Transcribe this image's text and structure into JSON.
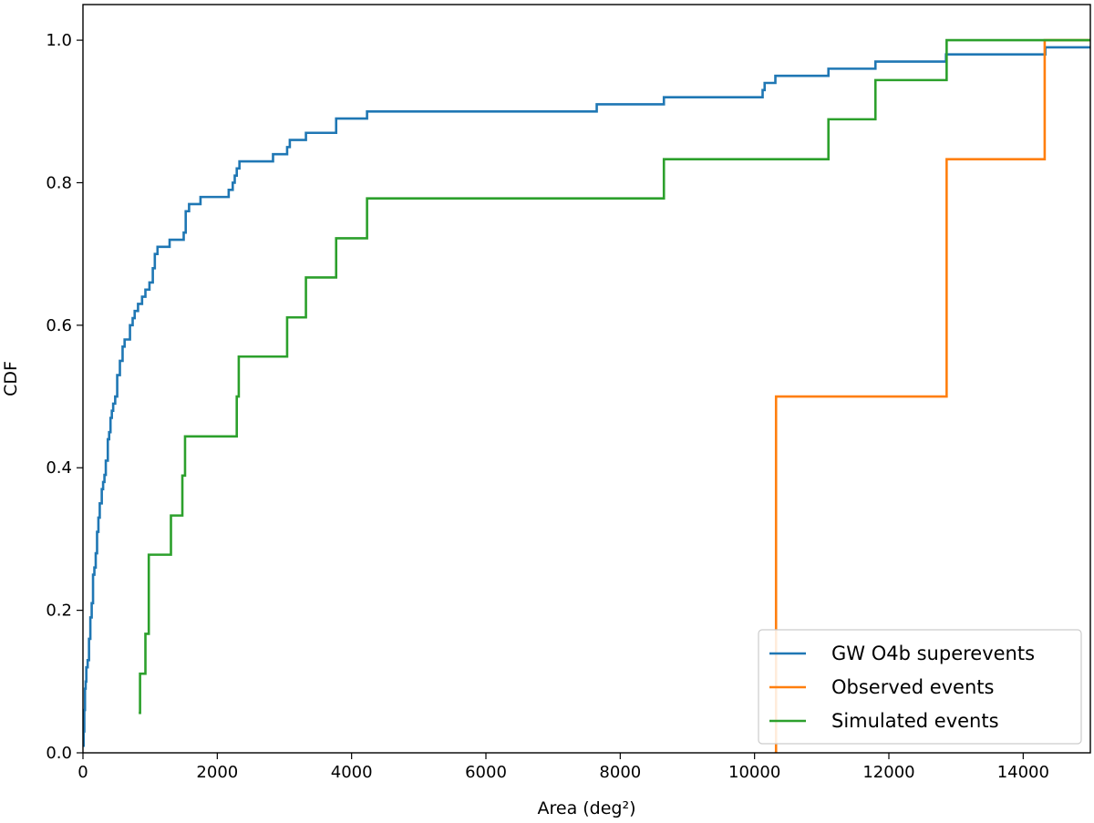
{
  "chart_data": {
    "type": "line",
    "step": true,
    "title": "",
    "xlabel": "Area (deg²)",
    "ylabel": "CDF",
    "xlim": [
      0,
      15000
    ],
    "ylim": [
      0,
      1.05
    ],
    "xticks": [
      0,
      2000,
      4000,
      6000,
      8000,
      10000,
      12000,
      14000
    ],
    "yticks": [
      0.0,
      0.2,
      0.4,
      0.6,
      0.8,
      1.0
    ],
    "xtick_labels": [
      "0",
      "2000",
      "4000",
      "6000",
      "8000",
      "10000",
      "12000",
      "14000"
    ],
    "ytick_labels": [
      "0.0",
      "0.2",
      "0.4",
      "0.6",
      "0.8",
      "1.0"
    ],
    "grid": false,
    "legend_position": "lower-right",
    "series": [
      {
        "name": "GW O4b superevents",
        "color": "#1f77b4",
        "points": [
          [
            0,
            0.01
          ],
          [
            10,
            0.03
          ],
          [
            20,
            0.06
          ],
          [
            30,
            0.09
          ],
          [
            40,
            0.1
          ],
          [
            50,
            0.12
          ],
          [
            70,
            0.13
          ],
          [
            90,
            0.16
          ],
          [
            110,
            0.19
          ],
          [
            130,
            0.21
          ],
          [
            150,
            0.25
          ],
          [
            170,
            0.26
          ],
          [
            190,
            0.28
          ],
          [
            210,
            0.31
          ],
          [
            230,
            0.33
          ],
          [
            250,
            0.35
          ],
          [
            280,
            0.37
          ],
          [
            300,
            0.38
          ],
          [
            320,
            0.39
          ],
          [
            340,
            0.41
          ],
          [
            370,
            0.44
          ],
          [
            390,
            0.45
          ],
          [
            410,
            0.47
          ],
          [
            430,
            0.48
          ],
          [
            450,
            0.49
          ],
          [
            480,
            0.5
          ],
          [
            510,
            0.53
          ],
          [
            550,
            0.55
          ],
          [
            590,
            0.57
          ],
          [
            620,
            0.58
          ],
          [
            660,
            0.58
          ],
          [
            700,
            0.6
          ],
          [
            740,
            0.61
          ],
          [
            770,
            0.62
          ],
          [
            820,
            0.63
          ],
          [
            880,
            0.64
          ],
          [
            930,
            0.65
          ],
          [
            990,
            0.66
          ],
          [
            1040,
            0.68
          ],
          [
            1070,
            0.7
          ],
          [
            1110,
            0.71
          ],
          [
            1190,
            0.71
          ],
          [
            1290,
            0.72
          ],
          [
            1500,
            0.73
          ],
          [
            1530,
            0.76
          ],
          [
            1580,
            0.77
          ],
          [
            1750,
            0.78
          ],
          [
            2170,
            0.79
          ],
          [
            2230,
            0.8
          ],
          [
            2260,
            0.81
          ],
          [
            2290,
            0.82
          ],
          [
            2330,
            0.83
          ],
          [
            2830,
            0.84
          ],
          [
            3040,
            0.85
          ],
          [
            3080,
            0.86
          ],
          [
            3320,
            0.87
          ],
          [
            3770,
            0.89
          ],
          [
            4230,
            0.9
          ],
          [
            7650,
            0.91
          ],
          [
            8650,
            0.92
          ],
          [
            10120,
            0.93
          ],
          [
            10150,
            0.94
          ],
          [
            10310,
            0.95
          ],
          [
            11100,
            0.96
          ],
          [
            11800,
            0.97
          ],
          [
            12850,
            0.98
          ],
          [
            14300,
            0.98
          ],
          [
            14330,
            0.99
          ],
          [
            15000,
            0.99
          ]
        ]
      },
      {
        "name": "Observed events",
        "color": "#ff7f0e",
        "points": [
          [
            10300,
            0.0
          ],
          [
            10320,
            0.5
          ],
          [
            12860,
            0.833
          ],
          [
            14320,
            1.0
          ],
          [
            15000,
            1.0
          ]
        ]
      },
      {
        "name": "Simulated events",
        "color": "#2ca02c",
        "points": [
          [
            830,
            0.056
          ],
          [
            850,
            0.111
          ],
          [
            930,
            0.167
          ],
          [
            980,
            0.278
          ],
          [
            1310,
            0.333
          ],
          [
            1480,
            0.389
          ],
          [
            1520,
            0.444
          ],
          [
            2290,
            0.5
          ],
          [
            2320,
            0.556
          ],
          [
            3040,
            0.611
          ],
          [
            3320,
            0.667
          ],
          [
            3770,
            0.722
          ],
          [
            4230,
            0.778
          ],
          [
            8650,
            0.833
          ],
          [
            11100,
            0.889
          ],
          [
            11800,
            0.944
          ],
          [
            12860,
            1.0
          ],
          [
            15000,
            1.0
          ]
        ]
      }
    ]
  }
}
